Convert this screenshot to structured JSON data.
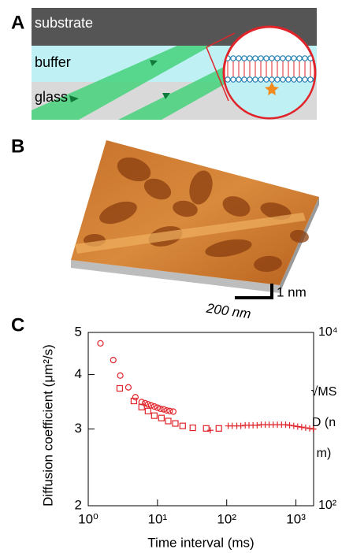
{
  "panel_a": {
    "label": "A",
    "layers": [
      "substrate",
      "buffer",
      "glass"
    ]
  },
  "panel_b": {
    "label": "B",
    "scale_z": "1 nm",
    "scale_xy": "200 nm"
  },
  "chart_data": {
    "type": "scatter",
    "panel_label": "C",
    "xlabel": "Time interval (ms)",
    "ylabel": "Diffusion coefficient (μm²/s)",
    "y2label": "√MSD (nm)",
    "xscale": "log",
    "yscale": "log",
    "y2scale": "log",
    "xlim": [
      1,
      1800
    ],
    "ylim": [
      2,
      5
    ],
    "y2lim": [
      100,
      10000
    ],
    "xticks": [
      {
        "value": 1,
        "label": "10⁰"
      },
      {
        "value": 10,
        "label": "10¹"
      },
      {
        "value": 100,
        "label": "10²"
      },
      {
        "value": 1000,
        "label": "10³"
      }
    ],
    "yticks": [
      2,
      3,
      4,
      5
    ],
    "y2ticks": [
      {
        "value": 100,
        "label": "10²"
      },
      {
        "value": 10000,
        "label": "10⁴"
      }
    ],
    "series": [
      {
        "marker": "circle",
        "color": "#e0242a",
        "x": [
          1.5,
          2.3,
          2.9,
          3.8,
          4.8,
          5.9,
          6.6,
          7.3,
          8.1,
          9,
          10,
          11,
          12.3,
          13.6,
          15,
          16.9
        ],
        "values": [
          4.72,
          4.32,
          3.98,
          3.74,
          3.55,
          3.46,
          3.44,
          3.42,
          3.4,
          3.38,
          3.36,
          3.34,
          3.33,
          3.31,
          3.3,
          3.29
        ]
      },
      {
        "marker": "square",
        "color": "#e0242a",
        "x": [
          2.85,
          4.56,
          5.9,
          7.3,
          9,
          11.4,
          14.3,
          18.1,
          23.1,
          32.4,
          50.6,
          77
        ],
        "values": [
          3.72,
          3.48,
          3.37,
          3.3,
          3.22,
          3.18,
          3.13,
          3.09,
          3.05,
          3.02,
          3.01,
          3.01
        ]
      },
      {
        "marker": "plus",
        "color": "#e0242a",
        "x": [
          58,
          105,
          120,
          140,
          160,
          185,
          210,
          240,
          275,
          315,
          360,
          410,
          470,
          540,
          620,
          710,
          810,
          930,
          1060,
          1210,
          1380,
          1580,
          1780
        ],
        "values": [
          2.98,
          3.05,
          3.05,
          3.05,
          3.05,
          3.06,
          3.06,
          3.06,
          3.06,
          3.07,
          3.07,
          3.07,
          3.07,
          3.07,
          3.07,
          3.07,
          3.06,
          3.05,
          3.04,
          3.03,
          3.02,
          3.01,
          3.0
        ]
      }
    ]
  }
}
